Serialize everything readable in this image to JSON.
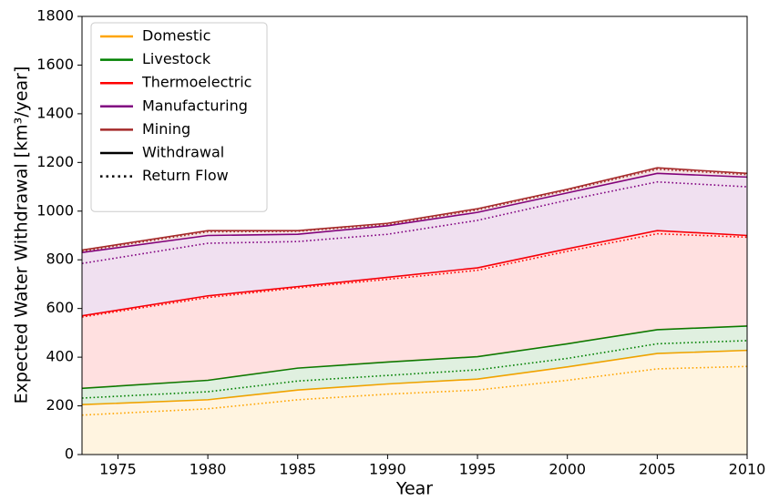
{
  "chart_data": {
    "type": "stacked_area",
    "xlabel": "Year",
    "ylabel": "Expected Water Withdrawal [km³/year]",
    "x": [
      1973,
      1980,
      1985,
      1990,
      1995,
      2000,
      2005,
      2010
    ],
    "xlim": [
      1973,
      2010
    ],
    "xticks": [
      1975,
      1980,
      1985,
      1990,
      1995,
      2000,
      2005,
      2010
    ],
    "ylim": [
      0,
      1800
    ],
    "yticks": [
      0,
      200,
      400,
      600,
      800,
      1000,
      1200,
      1400,
      1600,
      1800
    ],
    "legend": "upper left",
    "series": [
      {
        "name": "Domestic",
        "color": "#ffa500",
        "values": [
          205,
          225,
          265,
          290,
          310,
          360,
          415,
          428
        ],
        "return_values": [
          162,
          188,
          225,
          248,
          265,
          305,
          352,
          362
        ]
      },
      {
        "name": "Livestock",
        "color": "#008000",
        "values": [
          67,
          80,
          90,
          90,
          92,
          95,
          98,
          100
        ],
        "return_values": [
          70,
          70,
          77,
          77,
          83,
          90,
          103,
          106
        ]
      },
      {
        "name": "Thermoelectric",
        "color": "#ff0000",
        "values": [
          298,
          347,
          335,
          348,
          365,
          390,
          407,
          372
        ],
        "return_values": [
          333,
          387,
          383,
          395,
          409,
          440,
          452,
          425
        ]
      },
      {
        "name": "Manufacturing",
        "color": "#800080",
        "values": [
          260,
          248,
          215,
          212,
          228,
          230,
          235,
          240
        ],
        "return_values": [
          220,
          223,
          190,
          185,
          205,
          210,
          213,
          207
        ]
      },
      {
        "name": "Mining",
        "color": "#a52a2a",
        "values": [
          10,
          20,
          15,
          10,
          15,
          15,
          23,
          15
        ],
        "return_values": [
          50,
          47,
          42,
          40,
          43,
          40,
          52,
          50
        ]
      }
    ],
    "line_styles": [
      {
        "name": "Withdrawal",
        "color": "#000000",
        "dash": "solid"
      },
      {
        "name": "Return Flow",
        "color": "#000000",
        "dash": "dotted"
      }
    ]
  }
}
